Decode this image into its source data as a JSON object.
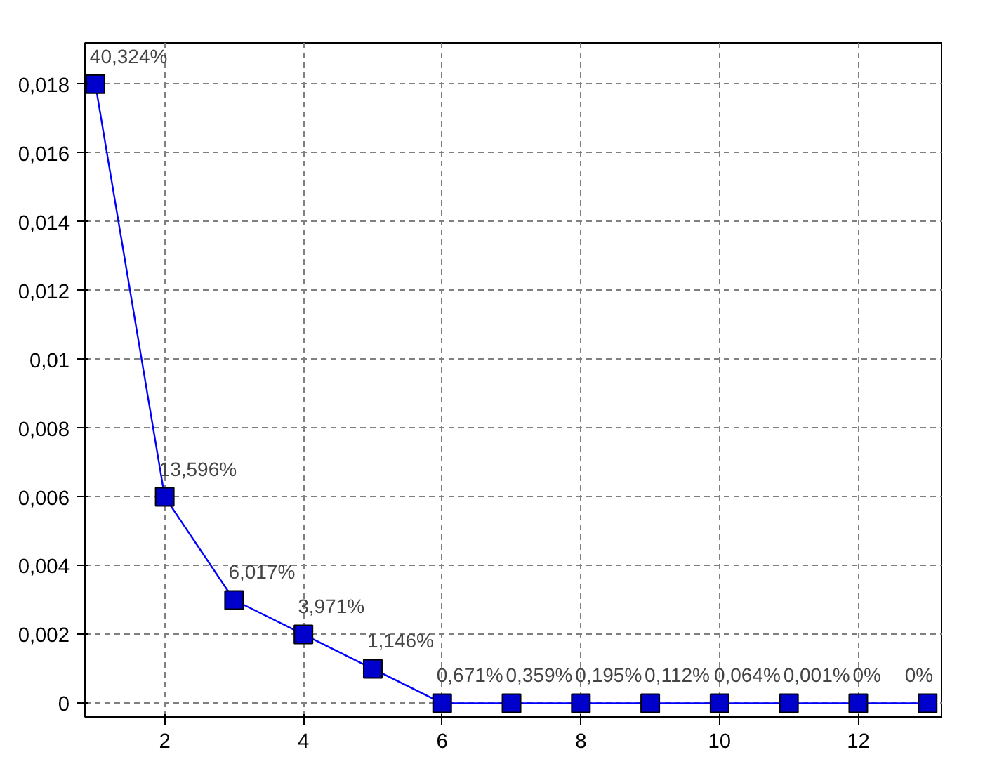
{
  "chart_data": {
    "type": "line",
    "x": [
      1,
      2,
      3,
      4,
      5,
      6,
      7,
      8,
      9,
      10,
      11,
      12,
      13
    ],
    "series": [
      {
        "color": "#0000ff",
        "values": [
          0.018,
          0.006,
          0.003,
          0.002,
          0.001,
          0,
          0,
          0,
          0,
          0,
          0,
          0,
          0
        ]
      }
    ],
    "annotations": [
      {
        "text": "40,324%",
        "x": 1,
        "y": 0.018
      },
      {
        "text": "13,596%",
        "x": 2,
        "y": 0.006
      },
      {
        "text": "6,017%",
        "x": 3,
        "y": 0.003
      },
      {
        "text": "3,971%",
        "x": 4,
        "y": 0.002
      },
      {
        "text": "1,146%",
        "x": 5,
        "y": 0.001
      },
      {
        "text": "0,671%",
        "x": 6,
        "y": 0
      },
      {
        "text": "0,359%",
        "x": 7,
        "y": 0
      },
      {
        "text": "0,195%",
        "x": 8,
        "y": 0
      },
      {
        "text": "0,112%",
        "x": 9,
        "y": 0
      },
      {
        "text": "0,064%",
        "x": 10,
        "y": 0
      },
      {
        "text": "0,001%",
        "x": 11,
        "y": 0
      },
      {
        "text": "0%",
        "x": 12,
        "y": 0
      },
      {
        "text": "0%",
        "x": 13,
        "y": 0
      }
    ],
    "marker": "square",
    "line_style": "solid",
    "grid": true,
    "xlim": [
      0.85,
      13.2
    ],
    "ylim": [
      -0.0004,
      0.0192
    ],
    "xticks": [
      2,
      4,
      6,
      8,
      10,
      12
    ],
    "yticks": [
      {
        "value": 0,
        "label": "0"
      },
      {
        "value": 0.002,
        "label": "0,002"
      },
      {
        "value": 0.004,
        "label": "0,004"
      },
      {
        "value": 0.006,
        "label": "0,006"
      },
      {
        "value": 0.008,
        "label": "0,008"
      },
      {
        "value": 0.01,
        "label": "0,01"
      },
      {
        "value": 0.012,
        "label": "0,012"
      },
      {
        "value": 0.014,
        "label": "0,014"
      },
      {
        "value": 0.016,
        "label": "0,016"
      },
      {
        "value": 0.018,
        "label": "0,018"
      }
    ]
  }
}
